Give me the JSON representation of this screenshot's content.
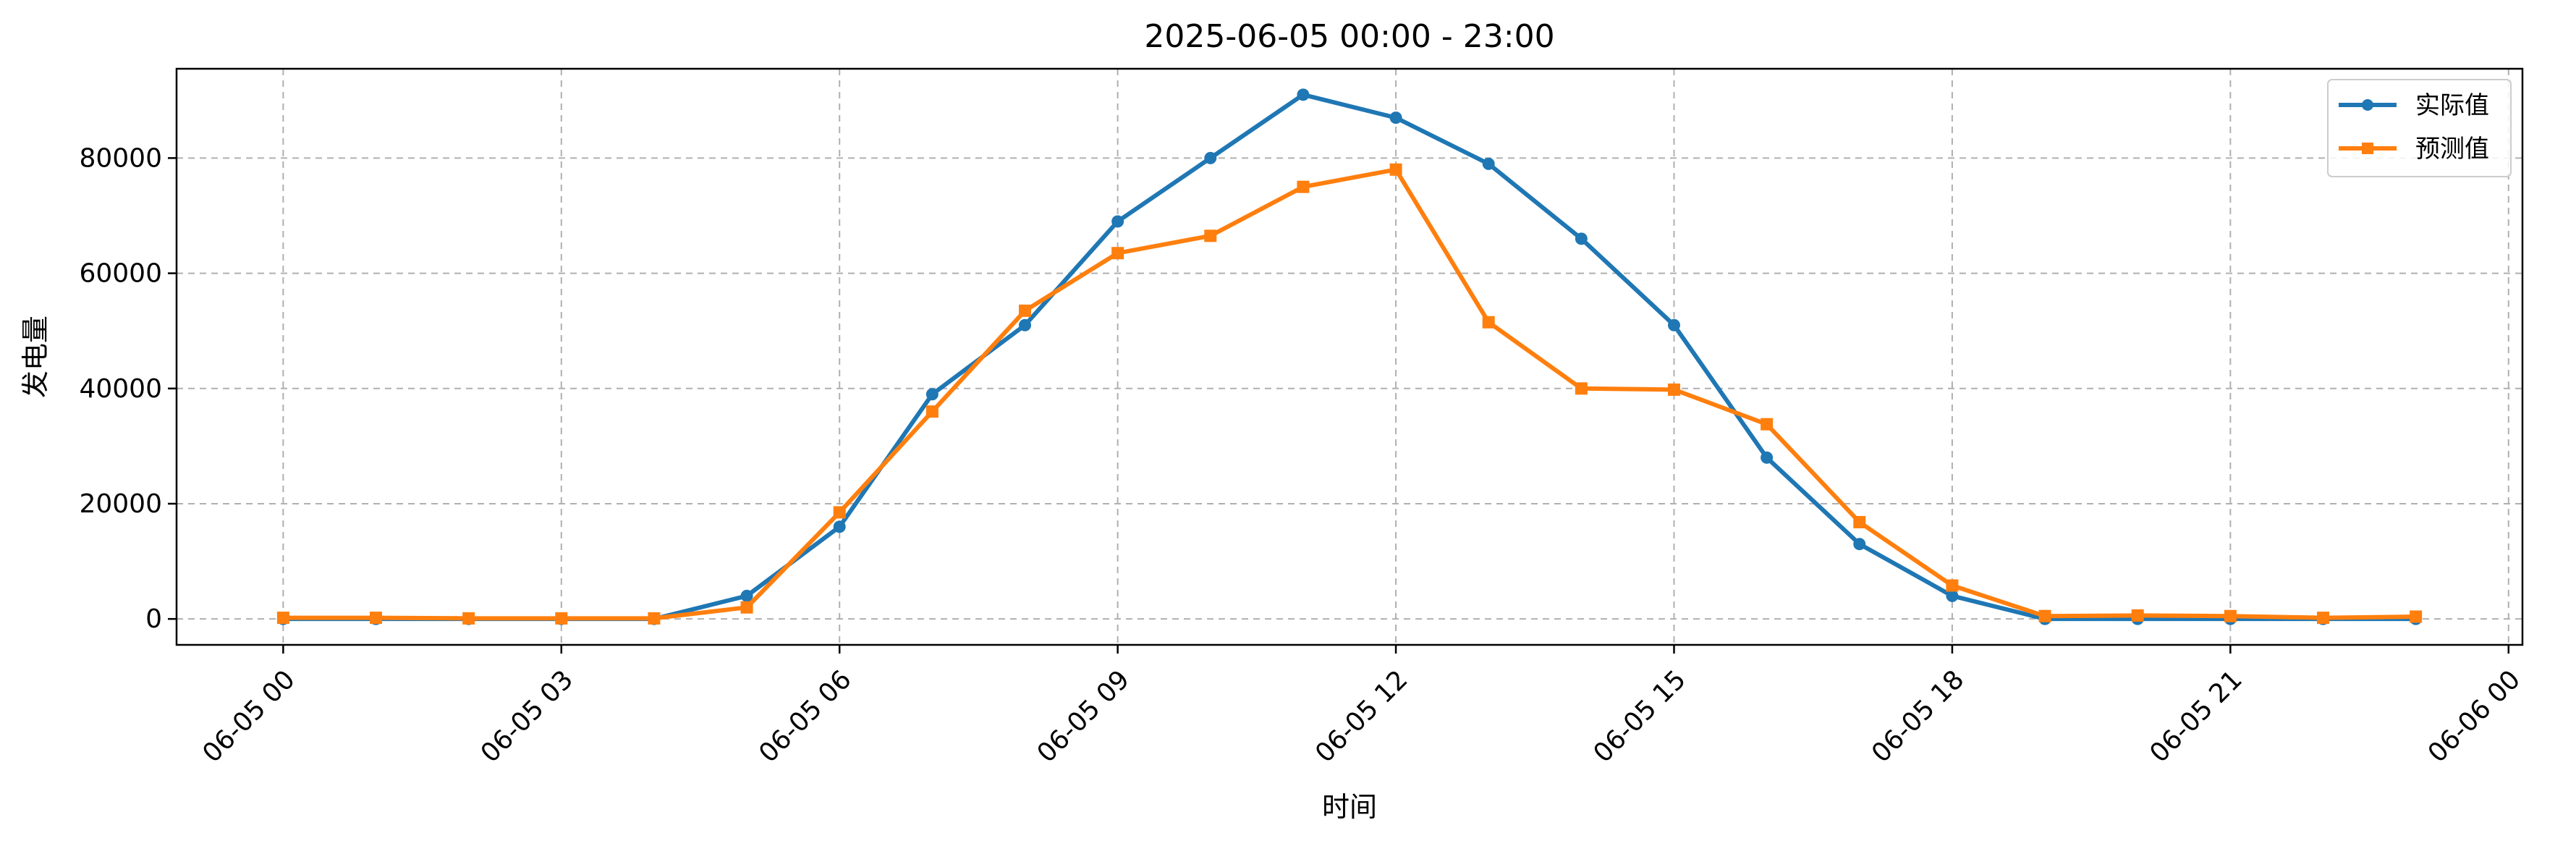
{
  "chart_data": {
    "type": "line",
    "title": "2025-06-05 00:00 - 23:00",
    "xlabel": "时间",
    "ylabel": "发电量",
    "x": [
      "00:00",
      "01:00",
      "02:00",
      "03:00",
      "04:00",
      "05:00",
      "06:00",
      "07:00",
      "08:00",
      "09:00",
      "10:00",
      "11:00",
      "12:00",
      "13:00",
      "14:00",
      "15:00",
      "16:00",
      "17:00",
      "18:00",
      "19:00",
      "20:00",
      "21:00",
      "22:00",
      "23:00"
    ],
    "x_hours": [
      0,
      1,
      2,
      3,
      4,
      5,
      6,
      7,
      8,
      9,
      10,
      11,
      12,
      13,
      14,
      15,
      16,
      17,
      18,
      19,
      20,
      21,
      22,
      23
    ],
    "xlim_hours": [
      -1.15,
      24.15
    ],
    "x_ticks_hours": [
      0,
      3,
      6,
      9,
      12,
      15,
      18,
      21,
      24
    ],
    "x_tick_labels": [
      "06-05 00",
      "06-05 03",
      "06-05 06",
      "06-05 09",
      "06-05 12",
      "06-05 15",
      "06-05 18",
      "06-05 21",
      "06-06 00"
    ],
    "ylim": [
      -4500,
      95500
    ],
    "y_ticks": [
      0,
      20000,
      40000,
      60000,
      80000
    ],
    "y_tick_labels": [
      "0",
      "20000",
      "40000",
      "60000",
      "80000"
    ],
    "grid": true,
    "legend_position": "top-right",
    "series": [
      {
        "name": "实际值",
        "color": "#1f77b4",
        "marker": "circle",
        "values": [
          0,
          0,
          0,
          0,
          0,
          4000,
          16000,
          39000,
          51000,
          69000,
          80000,
          91000,
          87000,
          79000,
          66000,
          51000,
          28000,
          13000,
          4000,
          0,
          0,
          0,
          0,
          0
        ]
      },
      {
        "name": "预测值",
        "color": "#ff7f0e",
        "marker": "square",
        "values": [
          200,
          200,
          100,
          100,
          100,
          2000,
          18500,
          36000,
          53500,
          63500,
          66500,
          75000,
          78000,
          51500,
          40000,
          39800,
          33800,
          16800,
          5800,
          500,
          600,
          500,
          200,
          400
        ]
      }
    ]
  }
}
